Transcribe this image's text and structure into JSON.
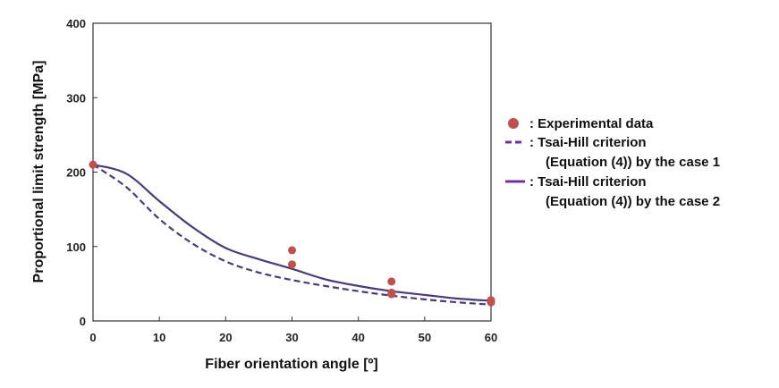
{
  "chart_data": {
    "type": "scatter",
    "xlabel": "Fiber orientation angle [º]",
    "ylabel": "Proportional limit strength [MPa]",
    "xlim": [
      0,
      60
    ],
    "ylim": [
      0,
      400
    ],
    "xticks": [
      0,
      10,
      20,
      30,
      40,
      50,
      60
    ],
    "yticks": [
      0,
      100,
      200,
      300,
      400
    ],
    "grid": false,
    "legend_position": "right",
    "colors": {
      "experimental": "#c0504d",
      "tsai_hill": "#4b3b76",
      "legend_line": "#7030a0"
    },
    "series": [
      {
        "name": "Experimental data",
        "kind": "points",
        "x": [
          0,
          30,
          30,
          45,
          45,
          45,
          60,
          60
        ],
        "y": [
          210,
          95,
          76,
          53,
          38,
          36,
          28,
          25
        ]
      },
      {
        "name": "Tsai-Hill criterion (Equation (4)) by the case 1",
        "kind": "dashed-line",
        "x": [
          0,
          5,
          10,
          15,
          20,
          25,
          30,
          35,
          40,
          45,
          50,
          55,
          60
        ],
        "y": [
          210,
          180,
          137,
          104,
          80,
          65,
          55,
          47,
          40,
          34,
          29,
          25,
          22
        ]
      },
      {
        "name": "Tsai-Hill criterion (Equation (4)) by the case 2",
        "kind": "solid-line",
        "x": [
          0,
          5,
          10,
          15,
          20,
          25,
          30,
          35,
          40,
          45,
          50,
          55,
          60
        ],
        "y": [
          210,
          198,
          161,
          126,
          98,
          83,
          70,
          56,
          47,
          40,
          35,
          30,
          27
        ]
      }
    ],
    "legend": [
      {
        "marker": "dot",
        "lines": [
          ": Experimental data"
        ]
      },
      {
        "marker": "dashed",
        "lines": [
          ": Tsai-Hill criterion",
          "(Equation (4)) by the case 1"
        ]
      },
      {
        "marker": "solid",
        "lines": [
          ": Tsai-Hill criterion",
          "(Equation (4)) by the case 2"
        ]
      }
    ]
  }
}
